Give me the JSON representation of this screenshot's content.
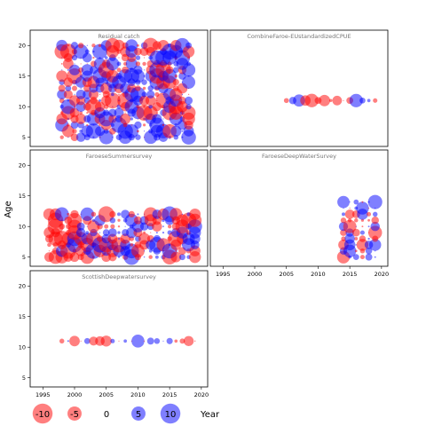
{
  "chart_data": {
    "type": "scatter",
    "description_kind": "bubble residual plot, multi-panel",
    "y_axis_title": "Age",
    "x_axis_title": "Year",
    "xlim": [
      1993,
      2021
    ],
    "ylim": [
      3.5,
      22.5
    ],
    "x_ticks": [
      1995,
      2000,
      2005,
      2010,
      2015,
      2020
    ],
    "y_ticks": [
      5,
      10,
      15,
      20
    ],
    "colors": {
      "positive": "#0000ff",
      "negative": "#ff0000"
    },
    "legend": {
      "position": "bottom",
      "entries": [
        {
          "label": "-10",
          "value": -10
        },
        {
          "label": "-5",
          "value": -5
        },
        {
          "label": "0",
          "value": 0
        },
        {
          "label": "5",
          "value": 5
        },
        {
          "label": "10",
          "value": 10
        }
      ]
    },
    "panels": [
      {
        "title": "Residual catch",
        "years": [
          1998,
          2018
        ],
        "ages": [
          5,
          20
        ],
        "seed": 11,
        "scale": 1.0
      },
      {
        "title": "CombineFaroe-EUstandardizedCPUE",
        "years": [
          2005,
          2019
        ],
        "ages": [
          11,
          11
        ],
        "seed": 23,
        "scale": 0.9
      },
      {
        "title": "FaroeseSummersurvey",
        "years": [
          1996,
          2019
        ],
        "ages": [
          5,
          12
        ],
        "seed": 37,
        "scale": 1.0
      },
      {
        "title": "FaroeseDeepWaterSurvey",
        "years": [
          2014,
          2019
        ],
        "ages": [
          5,
          14
        ],
        "seed": 51,
        "scale": 0.8
      },
      {
        "title": "ScottishDeepwatersurvey",
        "years": [
          1998,
          2019
        ],
        "ages": [
          11,
          11
        ],
        "seed": 67,
        "scale": 0.9
      }
    ]
  }
}
